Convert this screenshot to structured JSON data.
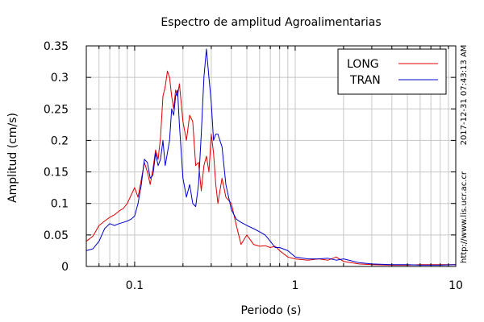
{
  "chart_data": {
    "type": "line",
    "title": "Espectro de amplitud Agroalimentarias",
    "xlabel": "Periodo (s)",
    "ylabel": "Amplitud (cm/s)",
    "x_scale": "log",
    "xlim": [
      0.05,
      10
    ],
    "ylim": [
      0,
      0.35
    ],
    "x_ticks": [
      0.1,
      1,
      10
    ],
    "x_tick_labels": [
      "0.1",
      "1",
      "10"
    ],
    "y_ticks": [
      0,
      0.05,
      0.1,
      0.15,
      0.2,
      0.25,
      0.3,
      0.35
    ],
    "y_tick_labels": [
      "0",
      "0.05",
      "0.1",
      "0.15",
      "0.2",
      "0.25",
      "0.3",
      "0.35"
    ],
    "grid": true,
    "legend_position": "top-right",
    "series": [
      {
        "name": "LONG",
        "color": "#dd0000",
        "x": [
          0.05,
          0.055,
          0.06,
          0.065,
          0.07,
          0.075,
          0.08,
          0.085,
          0.09,
          0.095,
          0.1,
          0.105,
          0.11,
          0.115,
          0.12,
          0.125,
          0.13,
          0.135,
          0.14,
          0.145,
          0.15,
          0.155,
          0.16,
          0.165,
          0.17,
          0.175,
          0.18,
          0.185,
          0.19,
          0.2,
          0.21,
          0.22,
          0.23,
          0.24,
          0.25,
          0.26,
          0.27,
          0.28,
          0.29,
          0.3,
          0.31,
          0.32,
          0.33,
          0.35,
          0.37,
          0.4,
          0.43,
          0.46,
          0.5,
          0.55,
          0.6,
          0.65,
          0.7,
          0.75,
          0.8,
          0.9,
          1.0,
          1.2,
          1.4,
          1.6,
          1.8,
          2.0,
          2.5,
          3,
          4,
          5,
          6,
          8,
          10
        ],
        "y": [
          0.04,
          0.048,
          0.065,
          0.072,
          0.078,
          0.082,
          0.088,
          0.092,
          0.1,
          0.113,
          0.125,
          0.11,
          0.138,
          0.165,
          0.15,
          0.13,
          0.155,
          0.185,
          0.17,
          0.205,
          0.27,
          0.285,
          0.31,
          0.3,
          0.27,
          0.25,
          0.28,
          0.27,
          0.29,
          0.23,
          0.2,
          0.24,
          0.23,
          0.16,
          0.165,
          0.12,
          0.16,
          0.175,
          0.15,
          0.21,
          0.18,
          0.13,
          0.1,
          0.14,
          0.11,
          0.1,
          0.065,
          0.035,
          0.05,
          0.035,
          0.032,
          0.033,
          0.03,
          0.032,
          0.025,
          0.015,
          0.012,
          0.01,
          0.012,
          0.01,
          0.015,
          0.008,
          0.004,
          0.003,
          0.002,
          0.002,
          0.003,
          0.003,
          0.003
        ]
      },
      {
        "name": "TRAN",
        "color": "#0000cc",
        "x": [
          0.05,
          0.055,
          0.06,
          0.065,
          0.07,
          0.075,
          0.08,
          0.085,
          0.09,
          0.095,
          0.1,
          0.105,
          0.11,
          0.115,
          0.12,
          0.125,
          0.13,
          0.135,
          0.14,
          0.145,
          0.15,
          0.155,
          0.16,
          0.165,
          0.17,
          0.175,
          0.18,
          0.185,
          0.19,
          0.2,
          0.21,
          0.22,
          0.23,
          0.24,
          0.25,
          0.26,
          0.27,
          0.28,
          0.29,
          0.3,
          0.31,
          0.32,
          0.33,
          0.35,
          0.37,
          0.4,
          0.43,
          0.46,
          0.5,
          0.55,
          0.6,
          0.65,
          0.7,
          0.75,
          0.8,
          0.9,
          1.0,
          1.2,
          1.4,
          1.6,
          1.8,
          2.0,
          2.5,
          3,
          4,
          5,
          6,
          8,
          10
        ],
        "y": [
          0.025,
          0.028,
          0.04,
          0.06,
          0.068,
          0.065,
          0.068,
          0.07,
          0.072,
          0.075,
          0.08,
          0.1,
          0.13,
          0.17,
          0.165,
          0.14,
          0.145,
          0.18,
          0.16,
          0.17,
          0.2,
          0.16,
          0.18,
          0.2,
          0.25,
          0.24,
          0.27,
          0.28,
          0.225,
          0.14,
          0.11,
          0.13,
          0.1,
          0.095,
          0.13,
          0.21,
          0.3,
          0.345,
          0.3,
          0.26,
          0.2,
          0.21,
          0.21,
          0.19,
          0.13,
          0.09,
          0.075,
          0.07,
          0.065,
          0.06,
          0.055,
          0.05,
          0.04,
          0.03,
          0.03,
          0.025,
          0.015,
          0.012,
          0.012,
          0.013,
          0.01,
          0.012,
          0.006,
          0.004,
          0.003,
          0.003,
          0.002,
          0.002,
          0.003
        ]
      }
    ]
  },
  "side_labels": {
    "timestamp": "2017-12-31 07:43:13 AM",
    "url": "http://www.lis.ucr.ac.cr"
  }
}
